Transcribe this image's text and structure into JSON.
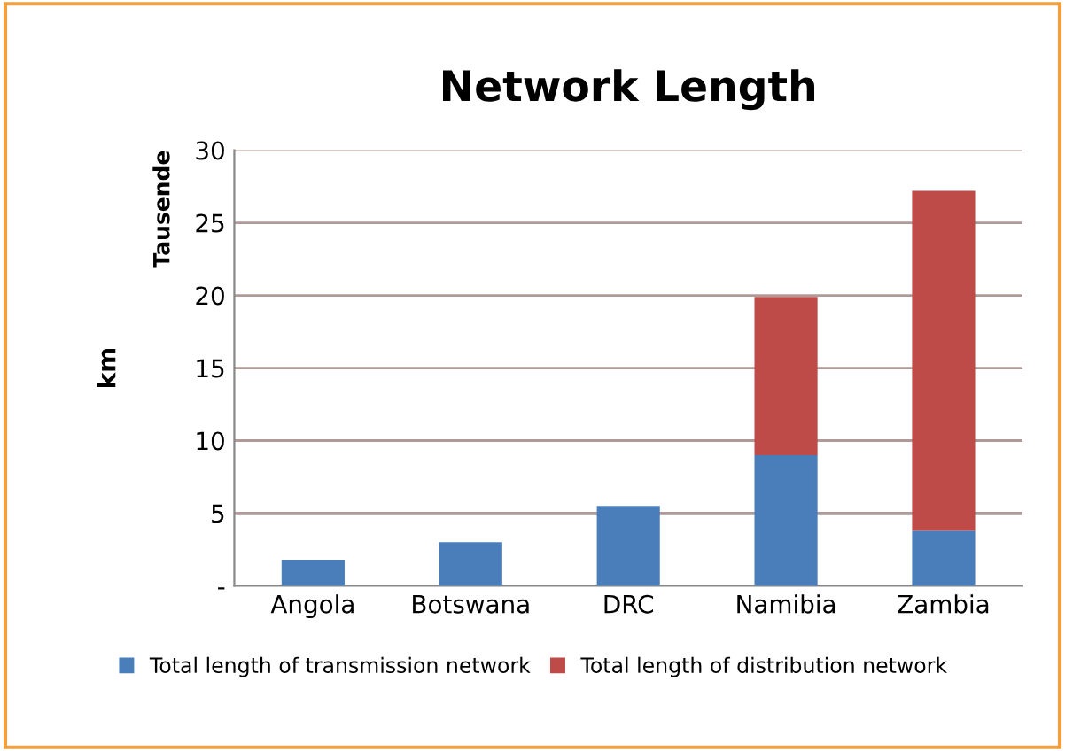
{
  "chart_data": {
    "type": "bar",
    "title": "Network Length",
    "ylabel": "km",
    "annotations": [
      "Tausende"
    ],
    "categories": [
      "Angola",
      "Botswana",
      "DRC",
      "Namibia",
      "Zambia"
    ],
    "series": [
      {
        "name": "Total length of transmission network",
        "color": "#4a7ebb",
        "values": [
          1.8,
          3.0,
          5.5,
          9.0,
          3.8
        ]
      },
      {
        "name": "Total length of distribution network",
        "color": "#be4b48",
        "values": [
          null,
          null,
          null,
          10.9,
          23.4
        ]
      }
    ],
    "stacked": true,
    "ylim": [
      0,
      30
    ],
    "yticks": [
      {
        "value": 0,
        "label": "-"
      },
      5,
      10,
      15,
      20,
      25,
      30
    ],
    "grid": "y",
    "legend": "bottom"
  }
}
